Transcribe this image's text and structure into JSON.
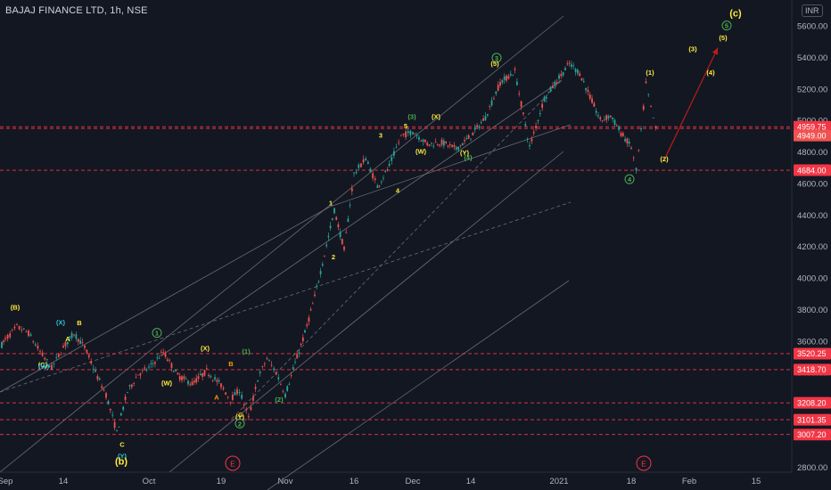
{
  "header": {
    "title": "BAJAJ FINANCE LTD, 1h, NSE",
    "currency": "INR"
  },
  "chart_data": {
    "type": "candlestick",
    "ylim": [
      2700,
      5800
    ],
    "y_ticks": [
      "2800.00",
      "3000.00",
      "3200.00",
      "3400.00",
      "3600.00",
      "3800.00",
      "4000.00",
      "4200.00",
      "4400.00",
      "4600.00",
      "4800.00",
      "5000.00",
      "5200.00",
      "5400.00",
      "5600.00"
    ],
    "x_ticks": [
      "Sep",
      "14",
      "Oct",
      "19",
      "Nov",
      "16",
      "Dec",
      "14",
      "2021",
      "18",
      "Feb",
      "15"
    ],
    "levels": [
      {
        "value": 4959.75,
        "label": "4959.75"
      },
      {
        "value": 4949.0,
        "label": "4949.00"
      },
      {
        "value": 4684.0,
        "label": "4684.00"
      },
      {
        "value": 3520.25,
        "label": "3520.25"
      },
      {
        "value": 3418.7,
        "label": "3418.70"
      },
      {
        "value": 3208.2,
        "label": "3208.20"
      },
      {
        "value": 3101.35,
        "label": "3101.35"
      },
      {
        "value": 3007.2,
        "label": "3007.20"
      }
    ],
    "price_path": [
      [
        "Sep",
        3610
      ],
      [
        "Sep",
        3690
      ],
      [
        "Sep",
        3650
      ],
      [
        "Sep",
        3530
      ],
      [
        "Sep",
        3430
      ],
      [
        "14",
        3560
      ],
      [
        "14",
        3650
      ],
      [
        "14",
        3560
      ],
      [
        "14",
        3400
      ],
      [
        "14",
        3260
      ],
      [
        "14",
        3020
      ],
      [
        "14",
        3280
      ],
      [
        "14",
        3390
      ],
      [
        "Oct",
        3430
      ],
      [
        "Oct",
        3530
      ],
      [
        "Oct",
        3380
      ],
      [
        "Oct",
        3330
      ],
      [
        "Oct",
        3410
      ],
      [
        "19",
        3320
      ],
      [
        "19",
        3230
      ],
      [
        "19",
        3290
      ],
      [
        "19",
        3110
      ],
      [
        "19",
        3360
      ],
      [
        "19",
        3490
      ],
      [
        "19",
        3400
      ],
      [
        "Nov",
        3260
      ],
      [
        "Nov",
        3460
      ],
      [
        "Nov",
        3650
      ],
      [
        "Nov",
        3880
      ],
      [
        "Nov",
        4150
      ],
      [
        "Nov",
        4430
      ],
      [
        "Nov",
        4180
      ],
      [
        "16",
        4660
      ],
      [
        "16",
        4760
      ],
      [
        "16",
        4580
      ],
      [
        "16",
        4710
      ],
      [
        "16",
        4900
      ],
      [
        "Dec",
        4930
      ],
      [
        "Dec",
        4850
      ],
      [
        "Dec",
        4860
      ],
      [
        "Dec",
        4820
      ],
      [
        "14",
        4900
      ],
      [
        "14",
        5020
      ],
      [
        "14",
        5240
      ],
      [
        "14",
        5310
      ],
      [
        "14",
        4830
      ],
      [
        "14",
        5140
      ],
      [
        "2021",
        5270
      ],
      [
        "2021",
        5360
      ],
      [
        "2021",
        5300
      ],
      [
        "2021",
        5150
      ],
      [
        "2021",
        5000
      ],
      [
        "2021",
        5030
      ],
      [
        "2021",
        4920
      ],
      [
        "18",
        4830
      ],
      [
        "18",
        4680
      ],
      [
        "18",
        4930
      ],
      [
        "18",
        5230
      ],
      [
        "18",
        5080
      ],
      [
        "18",
        4949
      ]
    ],
    "labels": [
      {
        "text": "(B)",
        "x": "Sep",
        "y": 3800,
        "color": "#ffeb3b",
        "style": "plain"
      },
      {
        "text": "(X)",
        "x": "14",
        "y": 3705,
        "color": "#26c6da",
        "style": "plain"
      },
      {
        "text": "B",
        "x": "14",
        "y": 3700,
        "color": "#ffeb3b",
        "style": "plain"
      },
      {
        "text": "A",
        "x": "14",
        "y": 3600,
        "color": "#ffeb3b",
        "style": "plain"
      },
      {
        "text": "(C)",
        "x": "14",
        "y": 3435,
        "color": "#ffeb3b",
        "style": "plain"
      },
      {
        "text": "(W)",
        "x": "14",
        "y": 3425,
        "color": "#26c6da",
        "style": "plain"
      },
      {
        "text": "C",
        "x": "14",
        "y": 2930,
        "color": "#ffeb3b",
        "style": "plain"
      },
      {
        "text": "(Y)",
        "x": "14",
        "y": 2855,
        "color": "#26c6da",
        "style": "plain"
      },
      {
        "text": "(b)",
        "x": "14",
        "y": 2815,
        "color": "#ffeb3b",
        "style": "plain"
      },
      {
        "text": "1",
        "x": "Oct",
        "y": 3635,
        "color": "#4caf50",
        "style": "circle"
      },
      {
        "text": "(X)",
        "x": "Oct",
        "y": 3540,
        "color": "#ffeb3b",
        "style": "plain"
      },
      {
        "text": "(W)",
        "x": "Oct",
        "y": 3320,
        "color": "#ffeb3b",
        "style": "plain"
      },
      {
        "text": "B",
        "x": "19",
        "y": 3440,
        "color": "#ff9800",
        "style": "plain"
      },
      {
        "text": "A",
        "x": "19",
        "y": 3230,
        "color": "#ff9800",
        "style": "plain"
      },
      {
        "text": "(1)",
        "x": "19",
        "y": 3520,
        "color": "#4caf50",
        "style": "plain"
      },
      {
        "text": "C",
        "x": "19",
        "y": 3120,
        "color": "#ff9800",
        "style": "plain"
      },
      {
        "text": "(Y)",
        "x": "19",
        "y": 3105,
        "color": "#ffeb3b",
        "style": "plain"
      },
      {
        "text": "2",
        "x": "19",
        "y": 3060,
        "color": "#4caf50",
        "style": "circle"
      },
      {
        "text": "(2)",
        "x": "Nov",
        "y": 3215,
        "color": "#4caf50",
        "style": "plain"
      },
      {
        "text": "1",
        "x": "Nov",
        "y": 4460,
        "color": "#ffeb3b",
        "style": "plain"
      },
      {
        "text": "2",
        "x": "Nov",
        "y": 4120,
        "color": "#ffeb3b",
        "style": "plain"
      },
      {
        "text": "3",
        "x": "16",
        "y": 4890,
        "color": "#ffeb3b",
        "style": "plain"
      },
      {
        "text": "4",
        "x": "16",
        "y": 4540,
        "color": "#ffeb3b",
        "style": "plain"
      },
      {
        "text": "5",
        "x": "16",
        "y": 4950,
        "color": "#ffeb3b",
        "style": "plain"
      },
      {
        "text": "(3)",
        "x": "Dec",
        "y": 5010,
        "color": "#4caf50",
        "style": "plain"
      },
      {
        "text": "(X)",
        "x": "Dec",
        "y": 5010,
        "color": "#ffeb3b",
        "style": "plain"
      },
      {
        "text": "(W)",
        "x": "Dec",
        "y": 4790,
        "color": "#ffeb3b",
        "style": "plain"
      },
      {
        "text": "(Y)",
        "x": "14",
        "y": 4780,
        "color": "#ffeb3b",
        "style": "plain"
      },
      {
        "text": "(4)",
        "x": "14",
        "y": 4750,
        "color": "#4caf50",
        "style": "plain"
      },
      {
        "text": "3",
        "x": "14",
        "y": 5380,
        "color": "#4caf50",
        "style": "circle"
      },
      {
        "text": "(5)",
        "x": "14",
        "y": 5345,
        "color": "#ffeb3b",
        "style": "plain"
      },
      {
        "text": "(1)",
        "x": "18",
        "y": 5290,
        "color": "#ffeb3b",
        "style": "plain"
      },
      {
        "text": "(2)",
        "x": "18",
        "y": 4740,
        "color": "#ffeb3b",
        "style": "plain"
      },
      {
        "text": "4",
        "x": "18",
        "y": 4610,
        "color": "#4caf50",
        "style": "circle"
      },
      {
        "text": "(3)",
        "x": "Feb",
        "y": 5440,
        "color": "#ffeb3b",
        "style": "plain"
      },
      {
        "text": "(4)",
        "x": "Feb",
        "y": 5290,
        "color": "#ffeb3b",
        "style": "plain"
      },
      {
        "text": "(5)",
        "x": "Feb",
        "y": 5510,
        "color": "#ffeb3b",
        "style": "plain"
      },
      {
        "text": "5",
        "x": "Feb",
        "y": 5585,
        "color": "#4caf50",
        "style": "circle"
      },
      {
        "text": "(c)",
        "x": "Feb",
        "y": 5660,
        "color": "#ffeb3b",
        "style": "plain"
      }
    ],
    "event_markers": [
      {
        "text": "E",
        "x": "19"
      },
      {
        "text": "E",
        "x": "18"
      }
    ],
    "projection": [
      [
        "18",
        4750
      ],
      [
        "Feb",
        5460
      ]
    ],
    "colors": {
      "up": "#26a69a",
      "down": "#ef5350",
      "level": "#f23645",
      "bg": "#131722",
      "axis_text": "#b2b5be",
      "trend": "#787b86"
    }
  }
}
